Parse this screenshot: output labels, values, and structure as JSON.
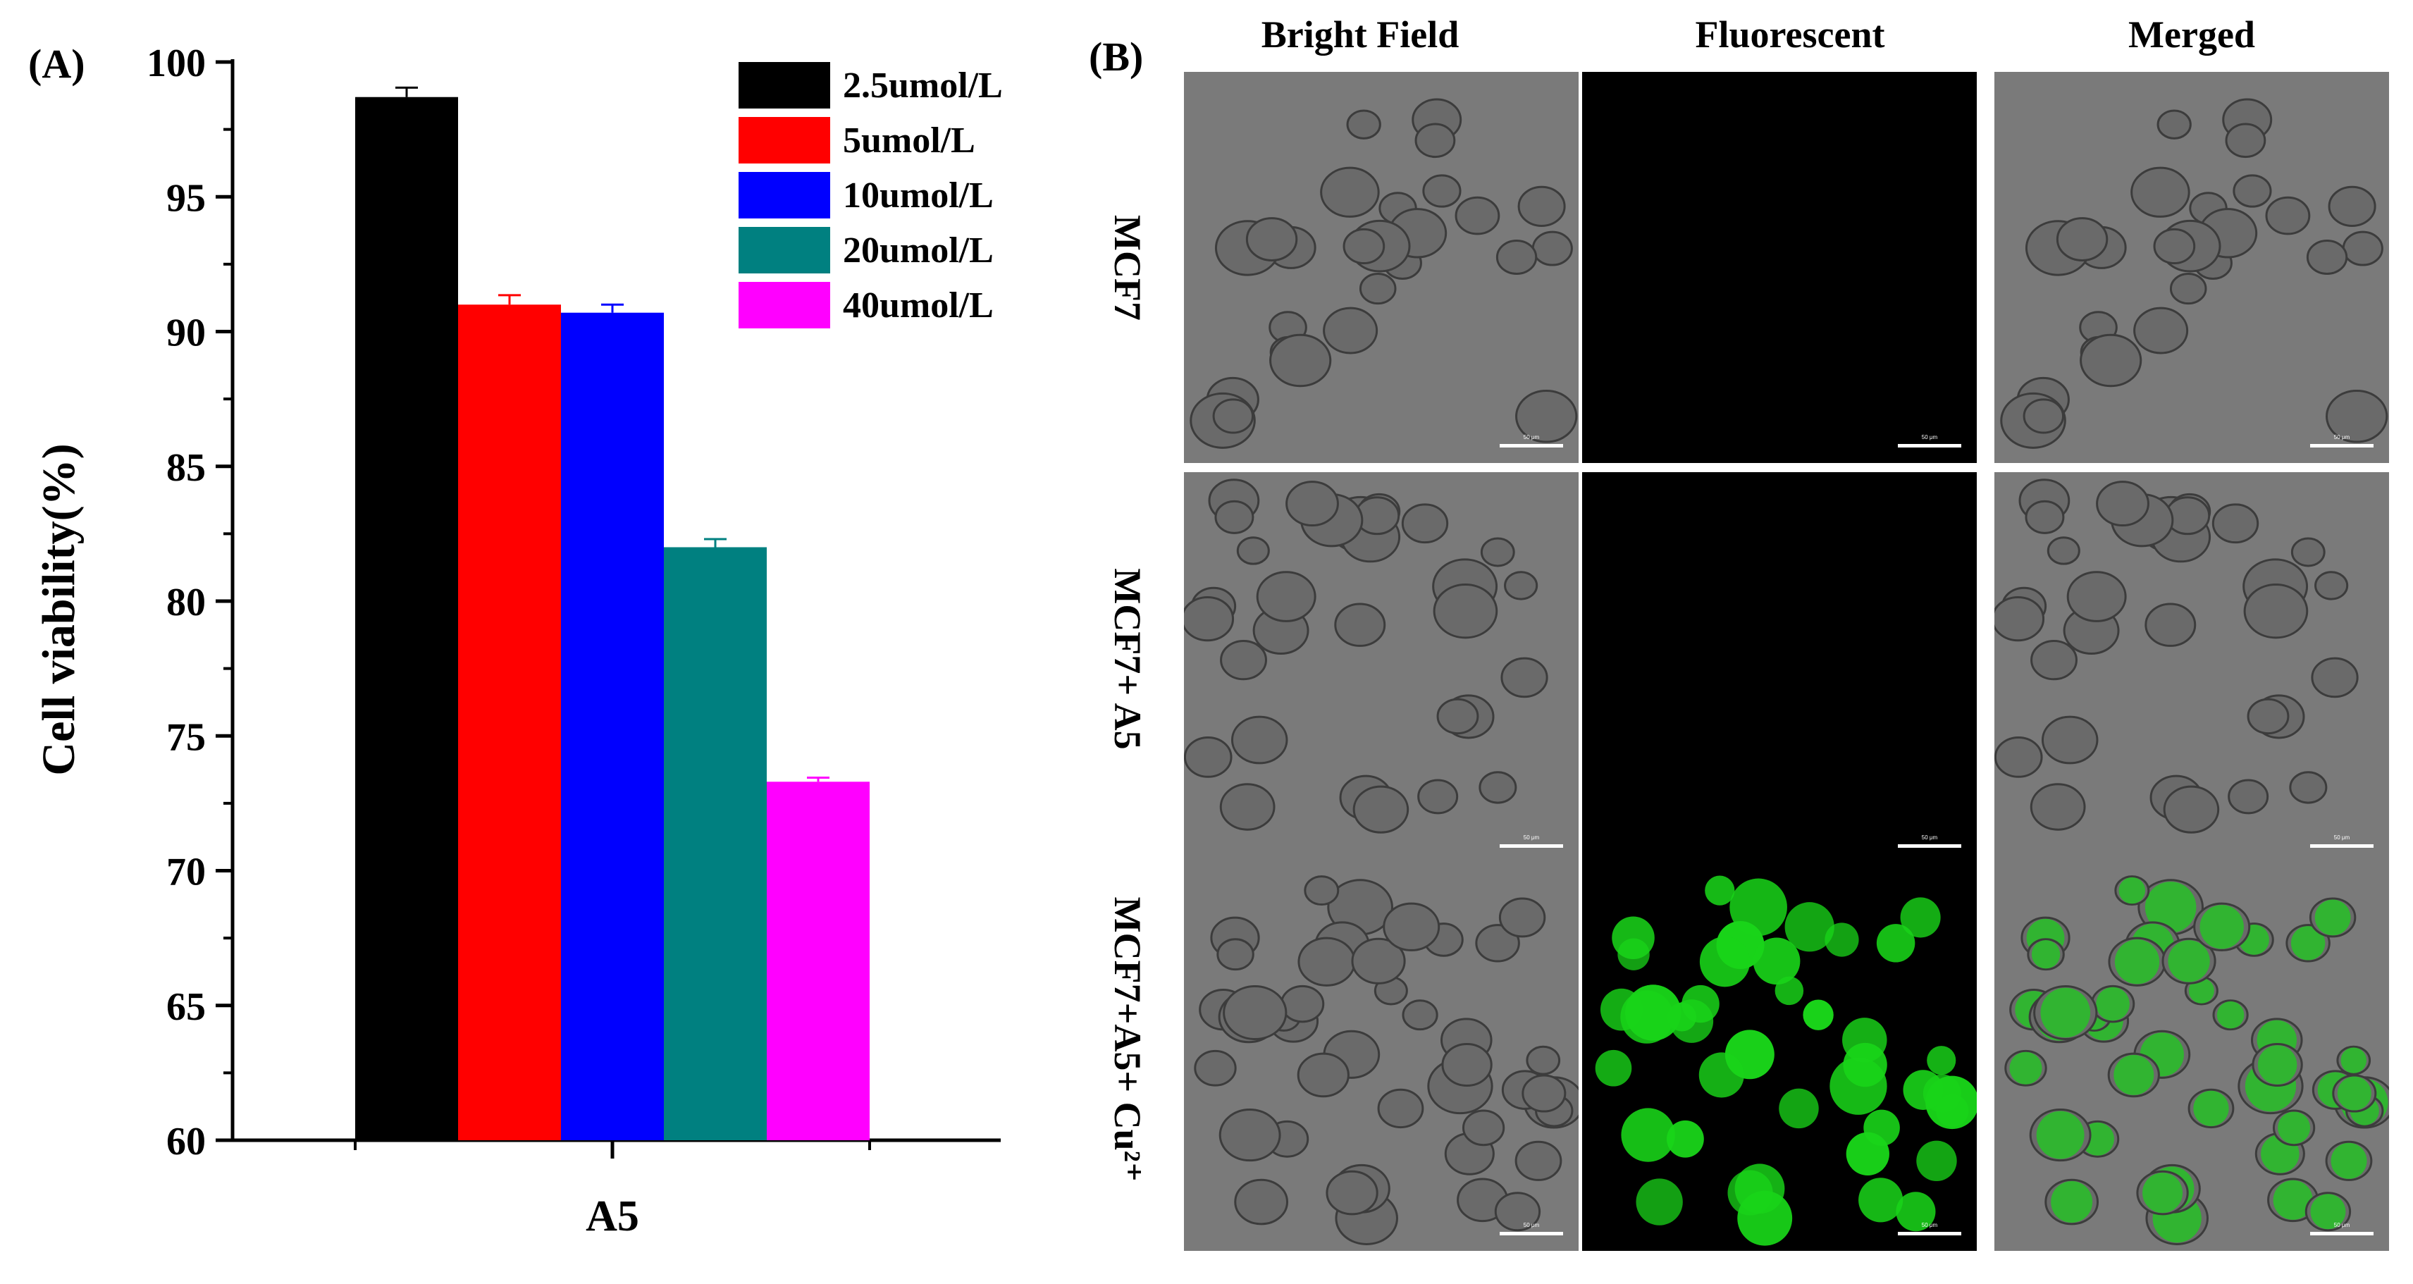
{
  "panel_a": {
    "label": "(A)",
    "chart_data": {
      "type": "bar",
      "categories": [
        "A5"
      ],
      "series": [
        {
          "name": "2.5umol/L",
          "values": [
            98.7
          ],
          "error": [
            0.35
          ],
          "color": "#000000"
        },
        {
          "name": "5umol/L",
          "values": [
            91.0
          ],
          "error": [
            0.35
          ],
          "color": "#ff0000"
        },
        {
          "name": "10umol/L",
          "values": [
            90.7
          ],
          "error": [
            0.3
          ],
          "color": "#0000ff"
        },
        {
          "name": "20umol/L",
          "values": [
            82.0
          ],
          "error": [
            0.3
          ],
          "color": "#008080"
        },
        {
          "name": "40umol/L",
          "values": [
            73.3
          ],
          "error": [
            0.15
          ],
          "color": "#ff00ff"
        }
      ],
      "title": "",
      "xlabel": "",
      "ylabel": "Cell viability(%)",
      "ylim": [
        60,
        100
      ],
      "yticks": [
        "60",
        "65",
        "70",
        "75",
        "80",
        "85",
        "90",
        "95",
        "100"
      ],
      "grid": false,
      "legend_position": "top-right"
    }
  },
  "panel_b": {
    "label": "(B)",
    "columns": [
      "Bright Field",
      "Fluorescent",
      "Merged"
    ],
    "rows": [
      "MCF7",
      "MCF7+ A5",
      "MCF7+A5+ Cu²⁺"
    ],
    "fluorescence_color": "#19d419",
    "scale_bar_text": "50 μm"
  }
}
